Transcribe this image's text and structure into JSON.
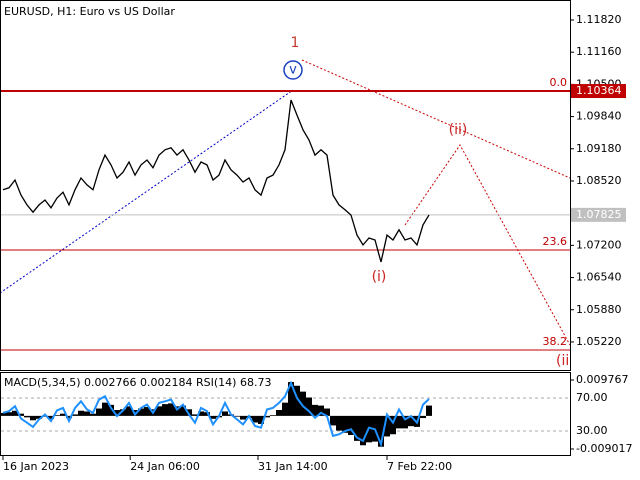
{
  "chart_data": [
    {
      "type": "line",
      "title": "EURUSD, H1:  Euro vs US Dollar",
      "color": "#000000",
      "values": [
        1.0834,
        1.0838,
        1.0854,
        1.0823,
        1.0803,
        1.0788,
        1.0803,
        1.0813,
        1.0797,
        1.0817,
        1.0829,
        1.0803,
        1.0834,
        1.0858,
        1.0844,
        1.0834,
        1.0875,
        1.0905,
        1.0885,
        1.0858,
        1.087,
        1.0891,
        1.0864,
        1.0885,
        1.0895,
        1.0879,
        1.0905,
        1.0916,
        1.092,
        1.0905,
        1.0916,
        1.0895,
        1.087,
        1.0891,
        1.0885,
        1.0854,
        1.0864,
        1.0895,
        1.0875,
        1.0864,
        1.085,
        1.0858,
        1.0834,
        1.0823,
        1.0858,
        1.0864,
        1.0885,
        1.0916,
        1.1018,
        1.0987,
        1.0957,
        1.0936,
        1.0905,
        1.0916,
        1.0905,
        1.0823,
        1.0803,
        1.0793,
        1.0782,
        1.0741,
        1.0721,
        1.0735,
        1.0731,
        1.0686,
        1.0741,
        1.0731,
        1.0752,
        1.0731,
        1.0735,
        1.0721,
        1.0762,
        1.07825
      ],
      "xlim": [
        0,
        94.5
      ],
      "xticks": [
        {
          "value": 0,
          "label": "16 Jan 2023"
        },
        {
          "value": 21.2,
          "label": "24 Jan 06:00"
        },
        {
          "value": 42.5,
          "label": "31 Jan 14:00"
        },
        {
          "value": 64,
          "label": "7 Feb 22:00"
        }
      ],
      "ylim": [
        1.04645,
        1.1223
      ],
      "yticks": [
        {
          "value": 1.1182,
          "label": "1.11820"
        },
        {
          "value": 1.1116,
          "label": "1.11160"
        },
        {
          "value": 1.105,
          "label": "1.10500"
        },
        {
          "value": 1.0984,
          "label": "1.09840"
        },
        {
          "value": 1.0918,
          "label": "1.09180"
        },
        {
          "value": 1.0852,
          "label": "1.08520"
        },
        {
          "value": 1.072,
          "label": "1.07200"
        },
        {
          "value": 1.0654,
          "label": "1.06540"
        },
        {
          "value": 1.0588,
          "label": "1.05880"
        },
        {
          "value": 1.0522,
          "label": "1.05220"
        }
      ],
      "levels": [
        {
          "value": 1.10364,
          "label": "0.0"
        },
        {
          "value": 1.07105,
          "label": "23.6"
        },
        {
          "value": 1.05055,
          "label": "38.2"
        }
      ],
      "level_color": "#c00000",
      "current_price": 1.07825,
      "annotations": [
        "1",
        "v",
        "(ii)",
        "(i)",
        "(ii"
      ]
    },
    {
      "type": "macd_rsi",
      "label": "MACD(5,34,5) 0.002766 0.002184 RSI(14) 68.73",
      "hist_color": "#000000",
      "rsi_color": "#1e90ff",
      "values": [
        0.0008,
        0.001,
        0.0014,
        0.0006,
        -0.0004,
        -0.0012,
        -0.0008,
        -0.0002,
        -0.0008,
        0.0002,
        0.0006,
        -0.0006,
        0.0004,
        0.0014,
        0.0012,
        0.0006,
        0.002,
        0.0036,
        0.003,
        0.0016,
        0.0018,
        0.0026,
        0.0016,
        0.002,
        0.0024,
        0.0018,
        0.0026,
        0.0032,
        0.0034,
        0.0026,
        0.0028,
        0.0018,
        0.0004,
        0.0012,
        0.001,
        -0.0008,
        -0.0004,
        0.0012,
        0.0004,
        -0.0002,
        -0.001,
        -0.0006,
        -0.0018,
        -0.0022,
        -0.0004,
        0.0002,
        0.0016,
        0.0036,
        0.0092,
        0.0082,
        0.0066,
        0.005,
        0.003,
        0.0028,
        0.002,
        -0.0026,
        -0.004,
        -0.0046,
        -0.0052,
        -0.0068,
        -0.008,
        -0.0072,
        -0.007,
        -0.0084,
        -0.0056,
        -0.005,
        -0.0034,
        -0.0034,
        -0.0028,
        -0.003,
        -0.0006,
        0.0028
      ],
      "rsi": [
        52,
        54,
        60,
        45,
        40,
        35,
        44,
        50,
        42,
        55,
        58,
        42,
        58,
        66,
        56,
        52,
        68,
        72,
        58,
        48,
        55,
        64,
        50,
        58,
        62,
        52,
        64,
        66,
        68,
        56,
        62,
        50,
        40,
        58,
        54,
        38,
        48,
        64,
        50,
        44,
        38,
        48,
        36,
        34,
        56,
        58,
        64,
        72,
        88,
        70,
        60,
        54,
        46,
        52,
        48,
        24,
        26,
        30,
        32,
        22,
        18,
        34,
        32,
        14,
        50,
        40,
        56,
        44,
        48,
        40,
        62,
        68.73
      ],
      "ylim": [
        -0.010649,
        0.011944
      ],
      "yticks": [
        0.009767,
        -0.009017
      ],
      "y2lim": [
        0.9,
        101.5
      ],
      "y2ticks": [
        {
          "value": 70,
          "label": "70.00"
        },
        {
          "value": 30,
          "label": "30.00"
        }
      ]
    }
  ]
}
